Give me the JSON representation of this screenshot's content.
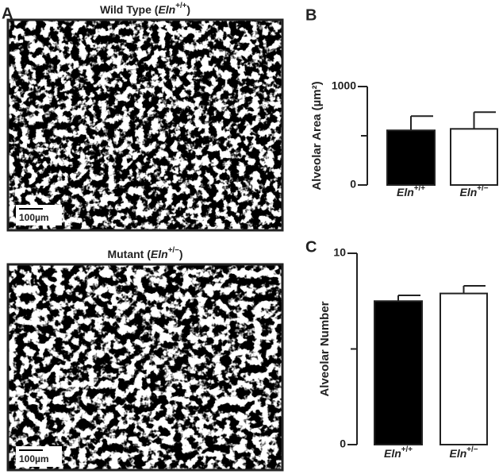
{
  "panel_a": {
    "label": "A",
    "images": [
      {
        "title": "Wild Type (Eln+/+)",
        "scale_bar": "100µm"
      },
      {
        "title": "Mutant (Eln+/−)",
        "scale_bar": "100µm"
      }
    ]
  },
  "chart_data": [
    {
      "type": "bar",
      "panel": "B",
      "ylabel": "Alveolar Area (µm²)",
      "categories": [
        "Eln+/+",
        "Eln+/−"
      ],
      "values": [
        555,
        570
      ],
      "errors": [
        145,
        170
      ],
      "colors": [
        "#000000",
        "#ffffff"
      ],
      "ylim": [
        0,
        1000
      ],
      "yticks": [
        0,
        1000
      ],
      "minor_yticks": [
        500
      ]
    },
    {
      "type": "bar",
      "panel": "C",
      "ylabel": "Alveolar Number",
      "categories": [
        "Eln+/+",
        "Eln+/−"
      ],
      "values": [
        7.5,
        7.9
      ],
      "errors": [
        0.3,
        0.4
      ],
      "colors": [
        "#000000",
        "#ffffff"
      ],
      "ylim": [
        0,
        10
      ],
      "yticks": [
        0,
        10
      ],
      "minor_yticks": [
        5
      ]
    }
  ]
}
